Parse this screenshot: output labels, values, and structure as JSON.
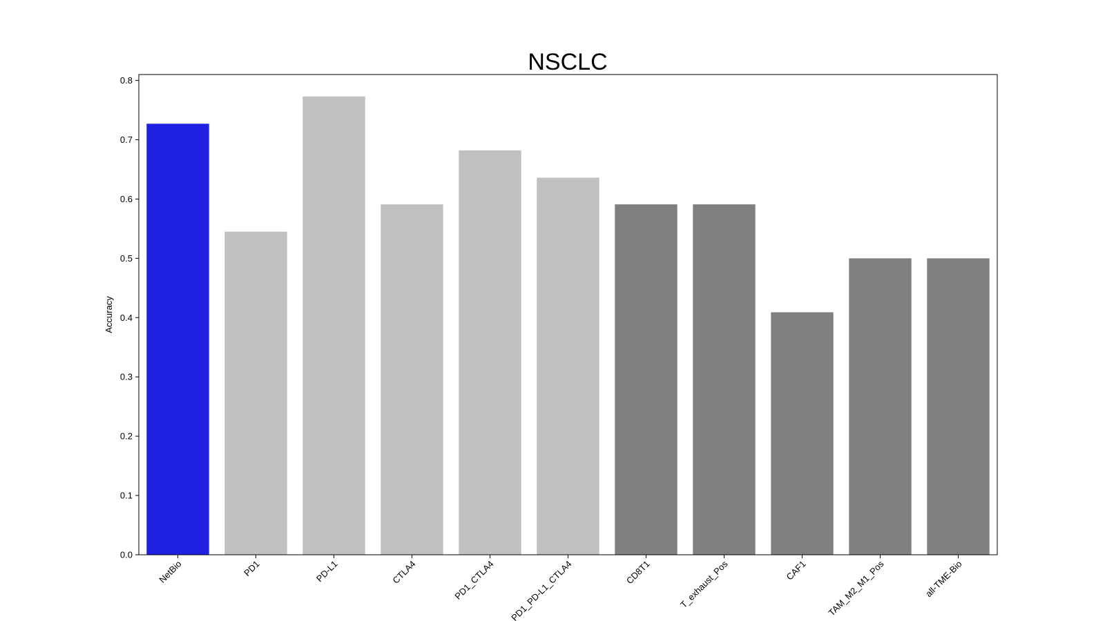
{
  "chart_data": {
    "type": "bar",
    "title": "NSCLC",
    "xlabel": "",
    "ylabel": "Accuracy",
    "ylim": [
      0,
      0.81
    ],
    "yticks": [
      0.0,
      0.1,
      0.2,
      0.3,
      0.4,
      0.5,
      0.6,
      0.7,
      0.8
    ],
    "ytick_labels": [
      "0.0",
      "0.1",
      "0.2",
      "0.3",
      "0.4",
      "0.5",
      "0.6",
      "0.7",
      "0.8"
    ],
    "grid": false,
    "categories": [
      "NetBio",
      "PD1",
      "PD-L1",
      "CTLA4",
      "PD1_CTLA4",
      "PD1_PD-L1_CTLA4",
      "CD8T1",
      "T_exhaust_Pos",
      "CAF1",
      "TAM_M2_M1_Pos",
      "all-TME-Bio"
    ],
    "values": [
      0.727,
      0.545,
      0.773,
      0.591,
      0.682,
      0.636,
      0.591,
      0.591,
      0.409,
      0.5,
      0.5
    ],
    "colors": [
      "#2020e0",
      "#c0c0c0",
      "#c0c0c0",
      "#c0c0c0",
      "#c0c0c0",
      "#c0c0c0",
      "#808080",
      "#808080",
      "#808080",
      "#808080",
      "#808080"
    ]
  }
}
